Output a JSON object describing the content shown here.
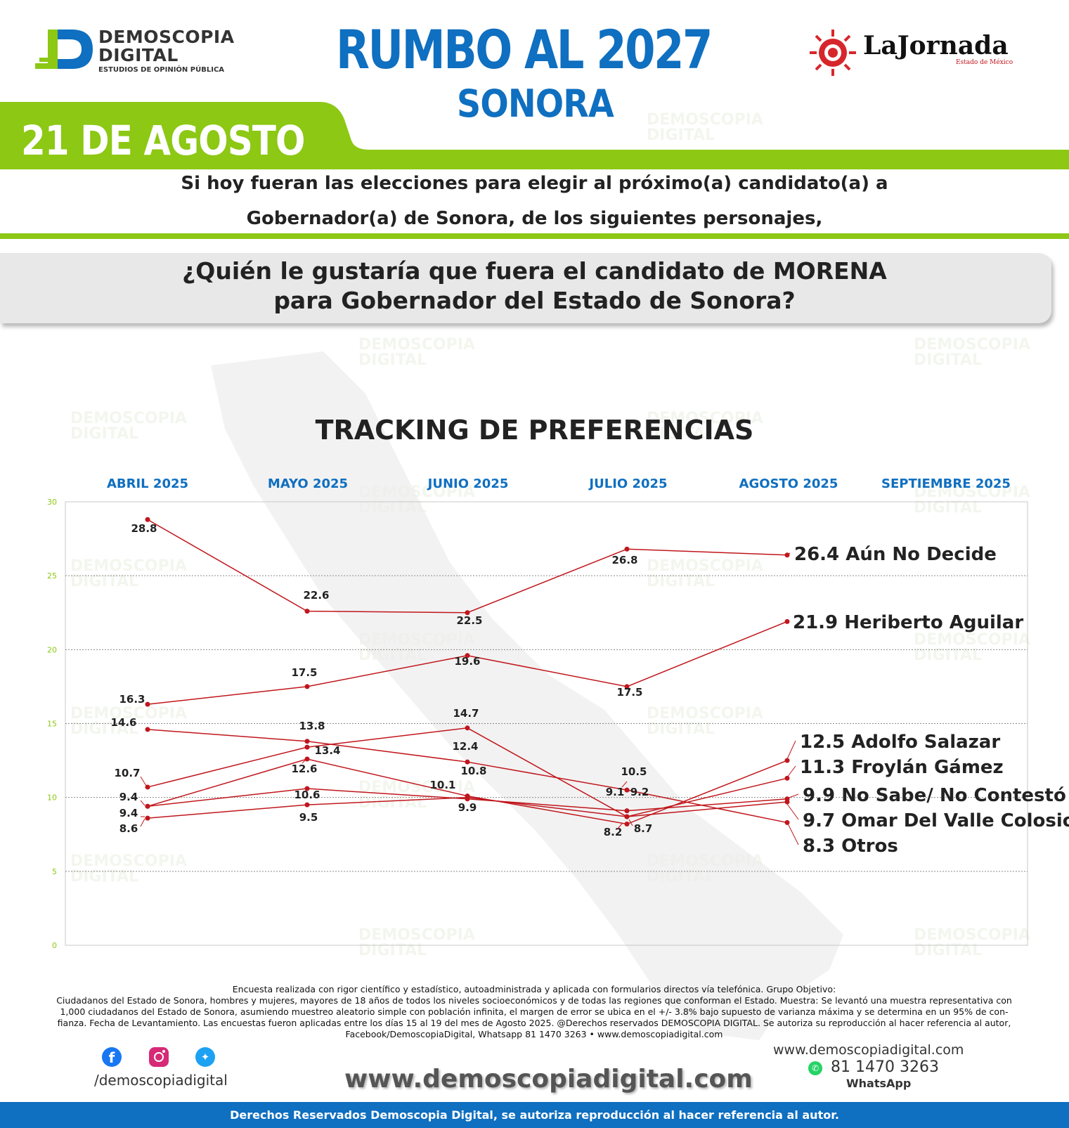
{
  "brand": {
    "line1": "DEMOSCOPIA",
    "line2": "DIGITAL",
    "tagline": "ESTUDIOS DE OPINIÓN PÚBLICA",
    "color_blue": "#0f6fc0",
    "color_green": "#8cc814"
  },
  "header": {
    "title": "RUMBO AL 2027",
    "subtitle": "SONORA",
    "date": "21 DE AGOSTO",
    "partner_name": "LaJornada",
    "partner_sub": "Estado de México"
  },
  "intro": {
    "line1": "Si hoy fueran las elecciones para elegir al próximo(a) candidato(a) a",
    "line2": "Gobernador(a) de Sonora, de los siguientes personajes,"
  },
  "question": {
    "line1": "¿Quién le gustaría que fuera el candidato de MORENA",
    "line2": "para Gobernador del Estado de Sonora?"
  },
  "chart_data": {
    "type": "line",
    "title": "TRACKING DE PREFERENCIAS",
    "columns": [
      "ABRIL 2025",
      "MAYO 2025",
      "JUNIO 2025",
      "JULIO 2025",
      "AGOSTO 2025",
      "SEPTIEMBRE 2025"
    ],
    "x_index": [
      0,
      1,
      2,
      3,
      4
    ],
    "ylim": [
      0,
      30
    ],
    "yticks": [
      0,
      5,
      10,
      15,
      20,
      25,
      30
    ],
    "grid": true,
    "line_color": "#c0161c",
    "series": [
      {
        "name": "Aún No Decide",
        "values": [
          28.8,
          22.6,
          22.5,
          26.8,
          26.4
        ]
      },
      {
        "name": "Heriberto Aguilar",
        "values": [
          16.3,
          17.5,
          19.6,
          17.5,
          21.9
        ]
      },
      {
        "name": "Adolfo Salazar",
        "values": [
          9.4,
          12.6,
          10.1,
          8.2,
          12.5
        ]
      },
      {
        "name": "Froylán Gámez",
        "values": [
          10.7,
          13.4,
          14.7,
          8.7,
          11.3
        ]
      },
      {
        "name": "No Sabe/ No Contestó",
        "values": [
          9.4,
          10.6,
          9.9,
          9.1,
          9.9
        ]
      },
      {
        "name": "Omar Del Valle Colosio",
        "values": [
          8.6,
          9.5,
          10.0,
          8.7,
          9.7
        ]
      },
      {
        "name": "Otros",
        "values": [
          14.6,
          13.8,
          12.4,
          10.5,
          8.3
        ]
      }
    ],
    "point_labels": [
      "28.8",
      "22.6",
      "22.5",
      "26.8",
      "16.3",
      "17.5",
      "19.6",
      "17.5",
      "14.6",
      "13.8",
      "12.4",
      "10.5",
      "10.7",
      "13.4",
      "14.7",
      "9.4",
      "12.6",
      "10.8",
      "9.1",
      "9.2",
      "9.4",
      "10.6",
      "10.1",
      "9.9",
      "8.6",
      "9.5",
      "8.2",
      "8.7"
    ],
    "end_labels": [
      {
        "value": "26.4",
        "name": "Aún No Decide"
      },
      {
        "value": "21.9",
        "name": "Heriberto Aguilar"
      },
      {
        "value": "12.5",
        "name": "Adolfo Salazar"
      },
      {
        "value": "11.3",
        "name": "Froylán Gámez"
      },
      {
        "value": "9.9",
        "name": "No Sabe/ No Contestó"
      },
      {
        "value": "9.7",
        "name": "Omar Del Valle Colosio"
      },
      {
        "value": "8.3",
        "name": "Otros"
      }
    ]
  },
  "footer": {
    "note1": "Encuesta realizada con rigor científico y estadístico, autoadministrada y aplicada con formularios directos vía telefónica. Grupo Objetivo:",
    "note2": "Ciudadanos del Estado de Sonora, hombres y mujeres, mayores de 18 años de todos los niveles socioeconómicos y de todas las regiones que conforman el Estado. Muestra: Se levantó una muestra representativa con",
    "note3": "1,000 ciudadanos del Estado de Sonora, asumiendo muestreo aleatorio simple con población infinita, el margen de error se ubica en el +/- 3.8% bajo supuesto de varianza máxima y se determina en un 95% de con-",
    "note4": "fianza. Fecha de Levantamiento. Las encuestas fueron aplicadas entre los días 15 al 19 del mes de Agosto 2025. @Derechos reservados DEMOSCOPIA DIGITAL. Se autoriza su reproducción al hacer referencia al autor,",
    "note5": "Facebook/DemoscopiaDigital, Whatsapp 81 1470 3263 • www.demoscopiadigital.com",
    "social_handle": "/demoscopiadigital",
    "website_big": "www.demoscopiadigital.com",
    "website_small": "www.demoscopiadigital.com",
    "phone": "81 1470 3263",
    "whatsapp_label": "WhatsApp",
    "rights": "Derechos Reservados Demoscopia Digital, se autoriza reproducción al hacer referencia al autor.",
    "facebook_color": "#1877f2",
    "instagram_color": "#d62976",
    "twitter_color": "#1da1f2",
    "whatsapp_color": "#25d366"
  }
}
